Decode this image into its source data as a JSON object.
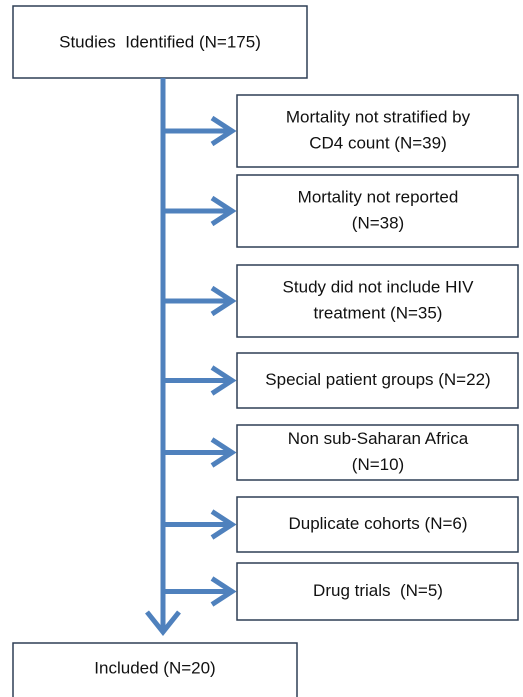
{
  "start": {
    "label": "Studies  Identified (N=175)"
  },
  "exclusions": [
    {
      "lines": [
        "Mortality not stratified by",
        "CD4 count (N=39)"
      ]
    },
    {
      "lines": [
        "Mortality not reported",
        "(N=38)"
      ]
    },
    {
      "lines": [
        "Study did not include HIV",
        "treatment (N=35)"
      ]
    },
    {
      "lines": [
        "Special patient groups (N=22)"
      ]
    },
    {
      "lines": [
        "Non sub-Saharan Africa",
        "(N=10)"
      ]
    },
    {
      "lines": [
        "Duplicate cohorts (N=6)"
      ]
    },
    {
      "lines": [
        "Drug trials  (N=5)"
      ]
    }
  ],
  "end": {
    "label": "Included (N=20)"
  }
}
